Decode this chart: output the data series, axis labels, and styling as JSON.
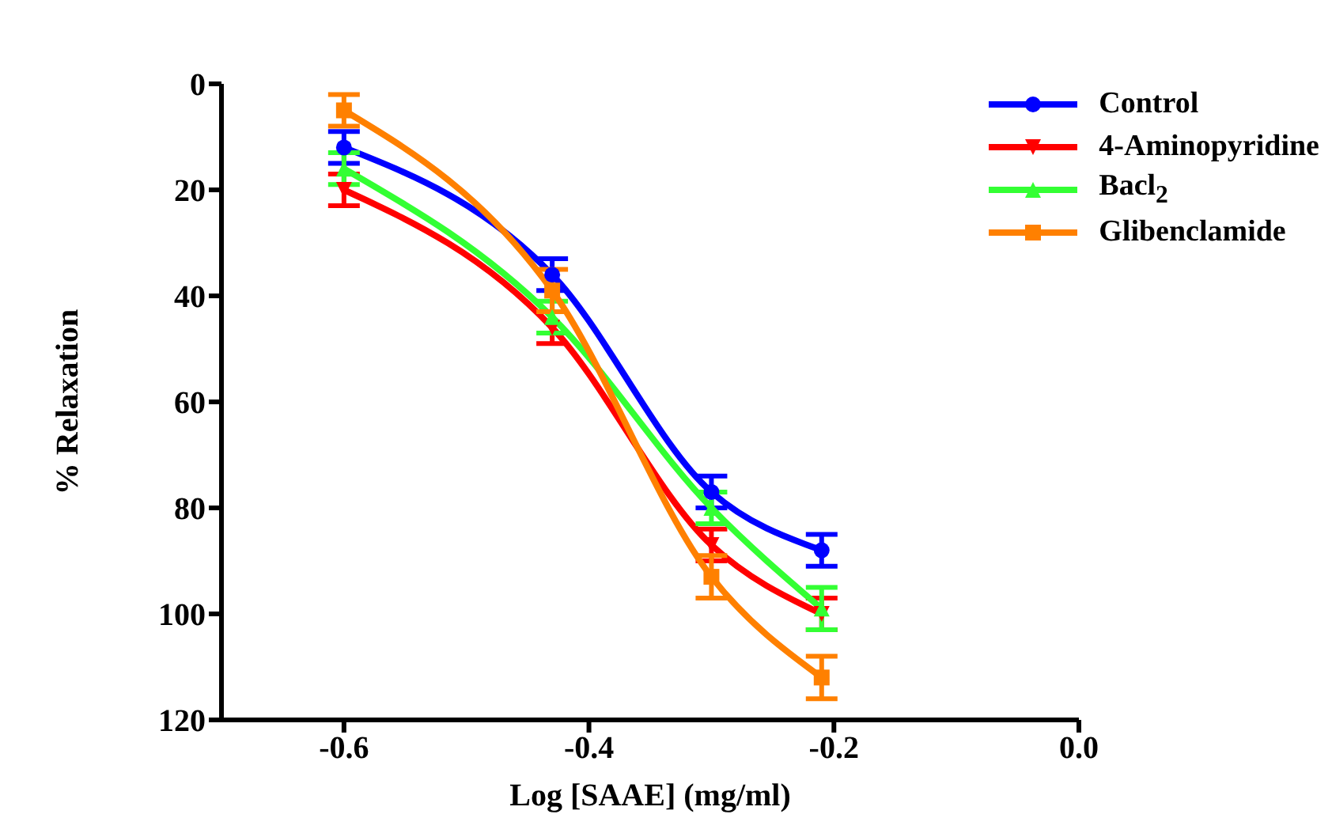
{
  "chart_data": {
    "type": "line",
    "xlabel": "Log [SAAE] (mg/ml)",
    "ylabel": "% Relaxation",
    "x": [
      -0.6,
      -0.43,
      -0.3,
      -0.21
    ],
    "series": [
      {
        "name": "Control",
        "color": "#0000ff",
        "marker": "circle",
        "values": [
          12,
          36,
          77,
          88
        ],
        "errors": [
          3,
          3,
          3,
          3
        ]
      },
      {
        "name": "4-Aminopyridine",
        "color": "#ff0000",
        "marker": "triangle-down",
        "values": [
          20,
          46,
          87,
          100
        ],
        "errors": [
          3,
          3,
          3,
          3
        ]
      },
      {
        "name": "Bacl$_{2}$",
        "color": "#33ff33",
        "marker": "triangle",
        "values": [
          16,
          44,
          80,
          99
        ],
        "errors": [
          3,
          3,
          3,
          4
        ]
      },
      {
        "name": "Glibenclamide",
        "color": "#ff8000",
        "marker": "square",
        "values": [
          5,
          39,
          93,
          112
        ],
        "errors": [
          3,
          4,
          4,
          4
        ]
      }
    ],
    "xlim": [
      -0.7,
      0.0
    ],
    "xticks": [
      -0.6,
      -0.4,
      -0.2,
      {
        "value": 0.0,
        "label": "0.0"
      }
    ],
    "ylim": [
      120,
      0
    ],
    "yticks": [
      0,
      20,
      40,
      60,
      80,
      100,
      120
    ],
    "grid": false,
    "legend": "top right",
    "line_style": "solid"
  }
}
